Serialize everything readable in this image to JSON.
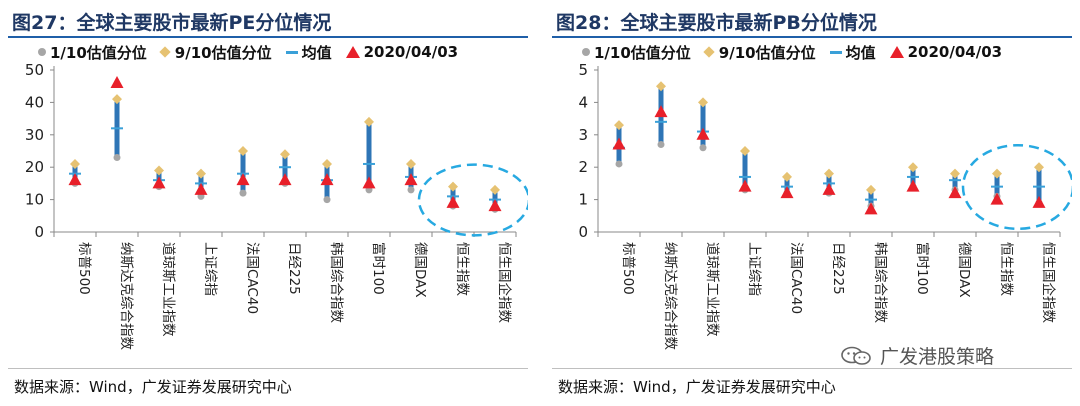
{
  "legend": {
    "p10": "1/10估值分位",
    "p90": "9/10估值分位",
    "mean": "均值",
    "current": "2020/04/03"
  },
  "colors": {
    "bar": "#2e75b6",
    "p10": "#a6a6a6",
    "p90": "#e6c272",
    "mean": "#3aa0d8",
    "current": "#e8202a",
    "highlight": "#27a9e1"
  },
  "source": "数据来源：Wind，广发证券发展研究中心",
  "watermark": "广发港股策略",
  "watermark_icon": "wechat-icon",
  "chart_data": [
    {
      "id": "pe",
      "type": "range",
      "title": "图27：全球主要股市最新PE分位情况",
      "ylim": [
        0,
        50
      ],
      "yticks": [
        "0",
        "10",
        "20",
        "30",
        "40",
        "50"
      ],
      "categories": [
        "标普500",
        "纳斯达克综合指数",
        "道琼斯工业指数",
        "上证综指",
        "法国CAC40",
        "日经225",
        "韩国综合指数",
        "富时100",
        "德国DAX",
        "恒生指数",
        "恒生国企指数"
      ],
      "p10": [
        15,
        23,
        14,
        11,
        12,
        15,
        10,
        13,
        13,
        8,
        7
      ],
      "p90": [
        21,
        41,
        19,
        18,
        25,
        24,
        21,
        34,
        21,
        14,
        13
      ],
      "mean": [
        18,
        32,
        16,
        15,
        18,
        20,
        16,
        21,
        17,
        11,
        10
      ],
      "current": [
        16,
        46,
        15,
        13,
        16,
        16,
        16,
        15,
        16,
        9,
        8
      ],
      "highlight_categories": [
        "恒生指数",
        "恒生国企指数"
      ]
    },
    {
      "id": "pb",
      "type": "range",
      "title": "图28：全球主要股市最新PB分位情况",
      "ylim": [
        0,
        5
      ],
      "yticks": [
        "0",
        "1",
        "2",
        "3",
        "4",
        "5"
      ],
      "categories": [
        "标普500",
        "纳斯达克综合指数",
        "道琼斯工业指数",
        "上证综指",
        "法国CAC40",
        "日经225",
        "韩国综合指数",
        "富时100",
        "德国DAX",
        "恒生指数",
        "恒生国企指数"
      ],
      "p10": [
        2.1,
        2.7,
        2.6,
        1.3,
        1.2,
        1.2,
        0.8,
        1.4,
        1.3,
        1.1,
        0.9
      ],
      "p90": [
        3.3,
        4.5,
        4.0,
        2.5,
        1.7,
        1.8,
        1.3,
        2.0,
        1.8,
        1.8,
        2.0
      ],
      "mean": [
        2.6,
        3.4,
        3.1,
        1.7,
        1.4,
        1.5,
        1.0,
        1.7,
        1.6,
        1.4,
        1.4
      ],
      "current": [
        2.7,
        3.7,
        3.0,
        1.4,
        1.2,
        1.3,
        0.7,
        1.4,
        1.2,
        1.0,
        0.9
      ],
      "highlight_categories": [
        "恒生指数",
        "恒生国企指数"
      ]
    }
  ]
}
